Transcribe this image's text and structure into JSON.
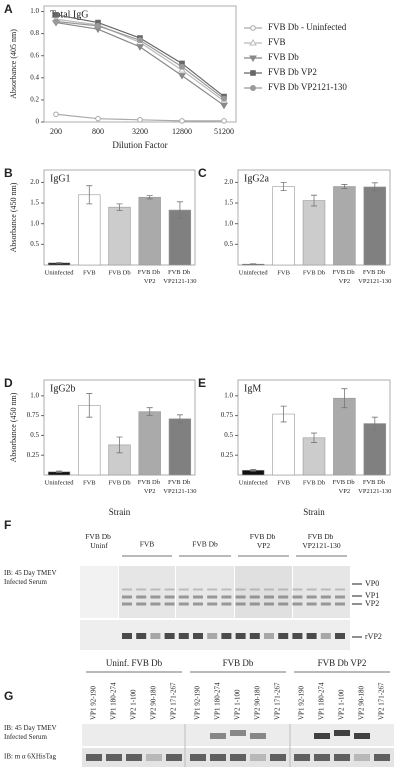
{
  "chart_data": [
    {
      "type": "line",
      "panel": "A",
      "title": "Total IgG",
      "y_label": "Absorbance (405 nm)",
      "x_label": "Dilution Factor",
      "categories": [
        "200",
        "800",
        "3200",
        "12800",
        "51200"
      ],
      "ylim": [
        0,
        1.05
      ],
      "yticks": [
        0,
        0.2,
        0.4,
        0.6,
        0.8,
        {
          "value": 1,
          "label": "1.0"
        }
      ],
      "legend": "right",
      "series": [
        {
          "name": "FVB Db - Uninfected",
          "color": "#aaaaaa",
          "marker": "circle-open",
          "values": [
            0.07,
            0.03,
            0.02,
            0.01,
            0.01
          ]
        },
        {
          "name": "FVB",
          "color": "#bbbbbb",
          "marker": "triangle-open",
          "values": [
            0.93,
            0.88,
            0.72,
            0.47,
            0.19
          ]
        },
        {
          "name": "FVB Db",
          "color": "#888888",
          "marker": "triangle-down",
          "values": [
            0.9,
            0.84,
            0.68,
            0.42,
            0.15
          ]
        },
        {
          "name": "FVB Db VP2",
          "color": "#666666",
          "marker": "square",
          "values": [
            0.97,
            0.9,
            0.76,
            0.53,
            0.23
          ]
        },
        {
          "name": "FVB Db VP2121-130",
          "color": "#999999",
          "marker": "circle",
          "values": [
            0.91,
            0.87,
            0.74,
            0.5,
            0.21
          ]
        }
      ]
    },
    {
      "type": "bar",
      "panel": "B",
      "title": "IgG1",
      "y_label": "Absorbance (450 nm)",
      "categories": [
        "Uninfected",
        "FVB",
        "FVB Db",
        "FVB Db VP2",
        "FVB Db VP2121-130"
      ],
      "colors": [
        "#111111",
        "#ffffff",
        "#cccccc",
        "#aaaaaa",
        "#808080"
      ],
      "values": [
        0.05,
        1.7,
        1.4,
        1.64,
        1.33
      ],
      "errors": [
        0.01,
        0.22,
        0.08,
        0.04,
        0.2
      ],
      "ylim": [
        0,
        2.3
      ],
      "yticks": [
        0.5,
        {
          "value": 1,
          "label": "1.0"
        },
        1.5,
        {
          "value": 2,
          "label": "2.0"
        }
      ]
    },
    {
      "type": "bar",
      "panel": "C",
      "title": "IgG2a",
      "categories": [
        "Uninfected",
        "FVB",
        "FVB Db",
        "FVB Db VP2",
        "FVB Db VP2121-130"
      ],
      "colors": [
        "#111111",
        "#ffffff",
        "#cccccc",
        "#aaaaaa",
        "#808080"
      ],
      "values": [
        0.02,
        1.9,
        1.56,
        1.9,
        1.89
      ],
      "errors": [
        0.01,
        0.1,
        0.13,
        0.05,
        0.1
      ],
      "ylim": [
        0,
        2.3
      ],
      "yticks": [
        0.5,
        {
          "value": 1,
          "label": "1.0"
        },
        1.5,
        {
          "value": 2,
          "label": "2.0"
        }
      ]
    },
    {
      "type": "bar",
      "panel": "D",
      "title": "IgG2b",
      "y_label": "Absorbance (450 nm)",
      "x_label": "Strain",
      "categories": [
        "Uninfected",
        "FVB",
        "FVB Db",
        "FVB Db VP2",
        "FVB Db VP2121-130"
      ],
      "colors": [
        "#111111",
        "#ffffff",
        "#cccccc",
        "#aaaaaa",
        "#808080"
      ],
      "values": [
        0.04,
        0.88,
        0.38,
        0.8,
        0.71
      ],
      "errors": [
        0.01,
        0.15,
        0.1,
        0.05,
        0.05
      ],
      "ylim": [
        0,
        1.2
      ],
      "yticks": [
        0.25,
        0.5,
        0.75,
        {
          "value": 1,
          "label": "1.0"
        }
      ]
    },
    {
      "type": "bar",
      "panel": "E",
      "title": "IgM",
      "x_label": "Strain",
      "categories": [
        "Uninfected",
        "FVB",
        "FVB Db",
        "FVB Db VP2",
        "FVB Db VP2121-130"
      ],
      "colors": [
        "#111111",
        "#ffffff",
        "#cccccc",
        "#aaaaaa",
        "#808080"
      ],
      "values": [
        0.06,
        0.77,
        0.47,
        0.97,
        0.65
      ],
      "errors": [
        0.01,
        0.1,
        0.06,
        0.12,
        0.08
      ],
      "ylim": [
        0,
        1.2
      ],
      "yticks": [
        0.25,
        0.5,
        0.75,
        {
          "value": 1,
          "label": "1.0"
        }
      ]
    }
  ],
  "blot_f": {
    "panel": "F",
    "groups": [
      "FVB Db Uninf",
      "FVB",
      "FVB Db",
      "FVB Db VP2",
      "FVB Db VP2121-130"
    ],
    "probe": "IB: 45 Day TMEV Infected Serum",
    "bands": [
      "VP0",
      "VP1",
      "VP2",
      "rVP2"
    ]
  },
  "blot_g": {
    "panel": "G",
    "groups": [
      "Uninf. FVB Db",
      "FVB Db",
      "FVB Db VP2"
    ],
    "lanes": [
      "VP1 92-190",
      "VP1 180-274",
      "VP2 1-100",
      "VP2 90-180",
      "VP2 171-267"
    ],
    "probes": [
      "IB: 45 Day TMEV Infected Serum",
      "IB: m α 6XHisTag"
    ]
  }
}
